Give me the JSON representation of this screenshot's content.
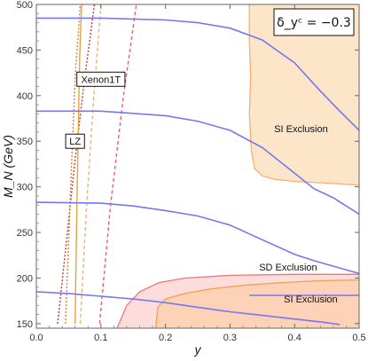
{
  "chart_data": {
    "type": "line",
    "title": "",
    "xlabel": "y",
    "ylabel": "M_N (GeV)",
    "xlim": [
      0.0,
      0.5
    ],
    "ylim": [
      145,
      500
    ],
    "x_ticks": [
      "0.0",
      "0.1",
      "0.2",
      "0.3",
      "0.4",
      "0.5"
    ],
    "y_ticks": [
      "150",
      "200",
      "250",
      "300",
      "350",
      "400",
      "450",
      "500"
    ],
    "parameter_label": "δ_yᶜ = −0.3",
    "curve_color": "#7777ee",
    "series": [
      {
        "x": [
          0.0,
          0.1,
          0.2,
          0.25,
          0.3,
          0.35,
          0.4,
          0.44,
          0.47,
          0.5
        ],
        "y": [
          485,
          485,
          483,
          480,
          474,
          461,
          436,
          405,
          383,
          362
        ]
      },
      {
        "x": [
          0.0,
          0.1,
          0.2,
          0.25,
          0.3,
          0.35,
          0.4,
          0.43,
          0.46,
          0.5
        ],
        "y": [
          383,
          383,
          378,
          372,
          362,
          343,
          315,
          298,
          288,
          270
        ]
      },
      {
        "x": [
          0.0,
          0.1,
          0.15,
          0.2,
          0.25,
          0.3,
          0.35,
          0.4,
          0.43,
          0.46,
          0.5
        ],
        "y": [
          283,
          282,
          279,
          274,
          268,
          258,
          242,
          226,
          219,
          213,
          205
        ]
      },
      {
        "x": [
          0.0,
          0.05,
          0.1,
          0.15,
          0.2,
          0.25,
          0.3,
          0.35,
          0.4,
          0.45,
          0.47
        ],
        "y": [
          185,
          183,
          180,
          177,
          173,
          168,
          163,
          159,
          155,
          151,
          149
        ]
      },
      {
        "x": [
          0.33,
          0.34,
          0.38,
          0.42,
          0.45,
          0.48,
          0.5
        ],
        "y": [
          181,
          181,
          181,
          181,
          181,
          181,
          181
        ]
      }
    ],
    "exclusion_lines": [
      {
        "name": "Xenon1T",
        "color": "#cc3333",
        "dash": "dotted",
        "x": [
          0.033,
          0.045,
          0.06,
          0.075,
          0.09
        ],
        "y": [
          150,
          230,
          330,
          420,
          500
        ]
      },
      {
        "name": "LZ",
        "color": "#e08030",
        "dash": "dotted",
        "x": [
          0.045,
          0.052,
          0.06,
          0.068
        ],
        "y": [
          150,
          280,
          420,
          500
        ]
      },
      {
        "name": "solid-orange",
        "color": "#e8a040",
        "dash": "solid",
        "x": [
          0.06,
          0.063,
          0.067,
          0.07
        ],
        "y": [
          150,
          290,
          440,
          500
        ]
      },
      {
        "name": "dashed-orange",
        "color": "#f0b070",
        "dash": "dashed",
        "x": [
          0.068,
          0.077,
          0.088,
          0.1
        ],
        "y": [
          150,
          270,
          390,
          500
        ]
      },
      {
        "name": "dashed-pink",
        "color": "#e86070",
        "dash": "dashed",
        "x": [
          0.098,
          0.115,
          0.135,
          0.155
        ],
        "y": [
          150,
          280,
          400,
          500
        ]
      }
    ],
    "regions": [
      {
        "label": "SI Exclusion",
        "fill": "#fde0c0",
        "stroke": "#f5b070",
        "boundary": [
          [
            0.33,
            500
          ],
          [
            0.33,
            460
          ],
          [
            0.332,
            420
          ],
          [
            0.33,
            380
          ],
          [
            0.333,
            340
          ],
          [
            0.338,
            320
          ],
          [
            0.35,
            312
          ],
          [
            0.37,
            308
          ],
          [
            0.4,
            306
          ],
          [
            0.45,
            304
          ],
          [
            0.5,
            302
          ],
          [
            0.5,
            500
          ]
        ]
      },
      {
        "label": "SD Exclusion",
        "fill": "#fdd6d6",
        "stroke": "#ee7777",
        "boundary": [
          [
            0.125,
            145
          ],
          [
            0.14,
            170
          ],
          [
            0.16,
            185
          ],
          [
            0.19,
            195
          ],
          [
            0.23,
            200
          ],
          [
            0.3,
            203
          ],
          [
            0.4,
            204
          ],
          [
            0.5,
            204
          ],
          [
            0.5,
            145
          ]
        ]
      },
      {
        "label": "SI Exclusion",
        "fill": "#fdd0b0",
        "stroke": "#f0a050",
        "boundary": [
          [
            0.185,
            145
          ],
          [
            0.188,
            168
          ],
          [
            0.2,
            177
          ],
          [
            0.23,
            183
          ],
          [
            0.27,
            188
          ],
          [
            0.32,
            192
          ],
          [
            0.38,
            195
          ],
          [
            0.44,
            197
          ],
          [
            0.5,
            198
          ],
          [
            0.5,
            145
          ]
        ]
      }
    ],
    "annotations": [
      {
        "text": "SI Exclusion",
        "x": 0.41,
        "y": 360
      },
      {
        "text": "SD Exclusion",
        "x": 0.39,
        "y": 208
      },
      {
        "text": "SI Exclusion",
        "x": 0.425,
        "y": 173
      }
    ],
    "boxed_labels": [
      {
        "text": "Xenon1T",
        "x": 0.1,
        "y": 418
      },
      {
        "text": "LZ",
        "x": 0.06,
        "y": 350
      }
    ]
  }
}
